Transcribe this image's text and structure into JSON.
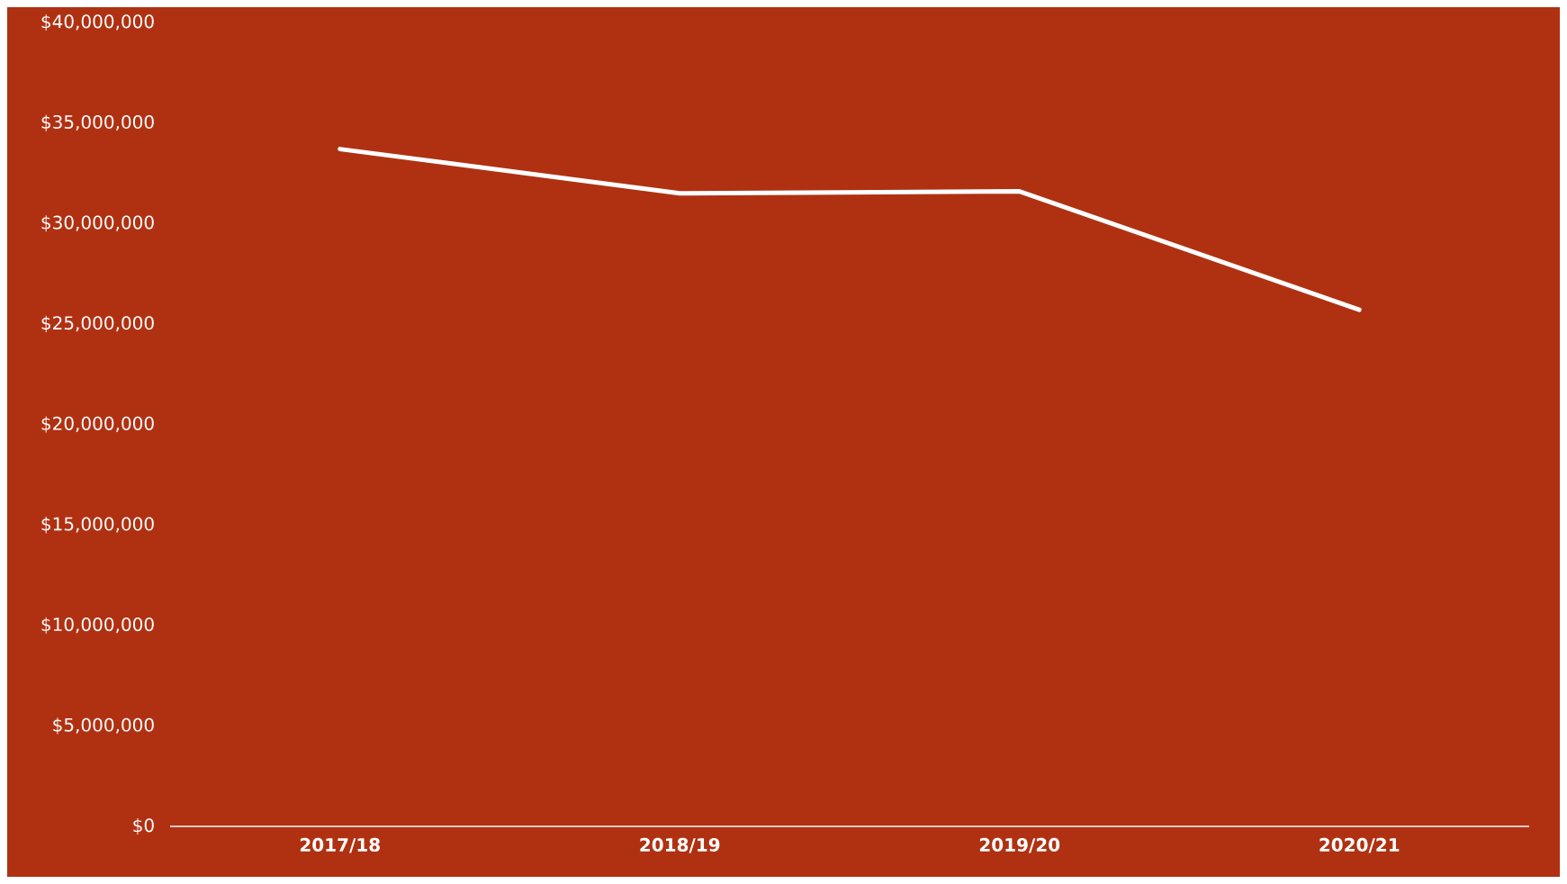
{
  "chart_data": {
    "type": "line",
    "categories": [
      "2017/18",
      "2018/19",
      "2019/20",
      "2020/21"
    ],
    "series": [
      {
        "color": "#ffffff",
        "values": [
          33700000,
          31500000,
          31600000,
          25700000
        ]
      }
    ],
    "ylim": [
      0,
      40000000
    ],
    "yticks": [
      {
        "value": 0,
        "label": "$0"
      },
      {
        "value": 5000000,
        "label": "$5,000,000"
      },
      {
        "value": 10000000,
        "label": "$10,000,000"
      },
      {
        "value": 15000000,
        "label": "$15,000,000"
      },
      {
        "value": 20000000,
        "label": "$20,000,000"
      },
      {
        "value": 25000000,
        "label": "$25,000,000"
      },
      {
        "value": 30000000,
        "label": "$30,000,000"
      },
      {
        "value": 35000000,
        "label": "$35,000,000"
      },
      {
        "value": 40000000,
        "label": "$40,000,000"
      }
    ],
    "grid": false,
    "legend": false,
    "marker": "none",
    "line_style": "solid"
  }
}
